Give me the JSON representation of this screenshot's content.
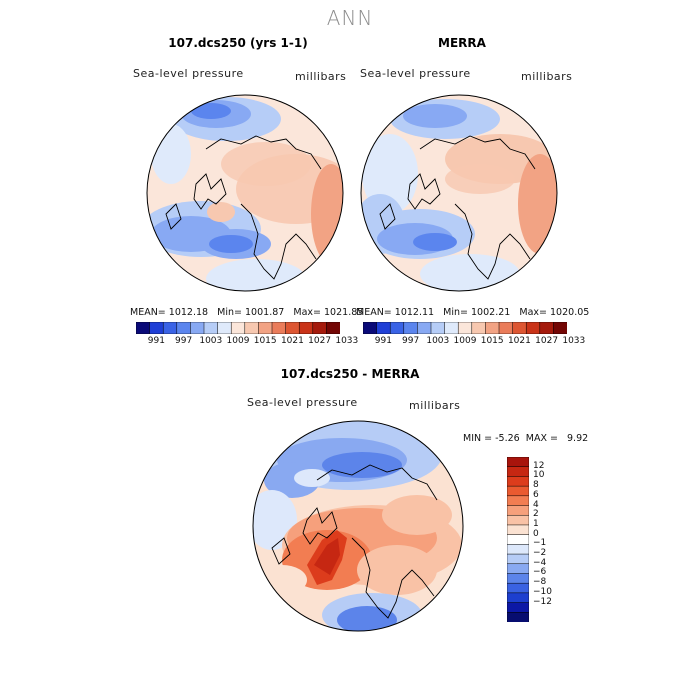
{
  "figure": {
    "title": "ANN"
  },
  "panels": [
    {
      "id": "model",
      "title": "107.dcs250 (yrs 1-1)",
      "left_label": "Sea-level pressure",
      "right_label": "millibars",
      "stats": {
        "mean_label": "MEAN=",
        "mean": "1012.18",
        "min_label": "Min=",
        "min": "1001.87",
        "max_label": "Max=",
        "max": "1021.85"
      }
    },
    {
      "id": "obs",
      "title": "MERRA",
      "left_label": "Sea-level pressure",
      "right_label": "millibars",
      "stats": {
        "mean_label": "MEAN=",
        "mean": "1012.11",
        "min_label": "Min=",
        "min": "1002.21",
        "max_label": "Max=",
        "max": "1020.05"
      }
    },
    {
      "id": "diff",
      "title": "107.dcs250 - MERRA",
      "left_label": "Sea-level pressure",
      "right_label": "millibars",
      "stats_line": {
        "min_label": "MIN =",
        "min": "-5.26",
        "max_label": "MAX =",
        "max": "9.92"
      }
    }
  ],
  "chart_data": [
    {
      "type": "heatmap",
      "projection": "polar stereographic (north polar)",
      "title": "107.dcs250 (yrs 1-1)",
      "variable": "Sea-level pressure",
      "units": "millibars",
      "stats": {
        "mean": 1012.18,
        "min": 1001.87,
        "max": 1021.85
      },
      "colorbar": {
        "orientation": "horizontal",
        "tick_labels": [
          "991",
          "997",
          "1003",
          "1009",
          "1015",
          "1021",
          "1027",
          "1033"
        ],
        "colors": [
          "#0a0a78",
          "#1f3fd6",
          "#3a63e6",
          "#5b85ee",
          "#88a9f3",
          "#b6cdf7",
          "#dfeafb",
          "#fbe6da",
          "#f7c8b0",
          "#f2a384",
          "#ea7c5a",
          "#dd5632",
          "#c93318",
          "#a51a0c",
          "#730604"
        ]
      }
    },
    {
      "type": "heatmap",
      "projection": "polar stereographic (north polar)",
      "title": "MERRA",
      "variable": "Sea-level pressure",
      "units": "millibars",
      "stats": {
        "mean": 1012.11,
        "min": 1002.21,
        "max": 1020.05
      },
      "colorbar": {
        "orientation": "horizontal",
        "tick_labels": [
          "991",
          "997",
          "1003",
          "1009",
          "1015",
          "1021",
          "1027",
          "1033"
        ],
        "colors": [
          "#0a0a78",
          "#1f3fd6",
          "#3a63e6",
          "#5b85ee",
          "#88a9f3",
          "#b6cdf7",
          "#dfeafb",
          "#fbe6da",
          "#f7c8b0",
          "#f2a384",
          "#ea7c5a",
          "#dd5632",
          "#c93318",
          "#a51a0c",
          "#730604"
        ]
      }
    },
    {
      "type": "heatmap",
      "projection": "polar stereographic (north polar)",
      "title": "107.dcs250 - MERRA",
      "variable": "Sea-level pressure",
      "units": "millibars",
      "stats": {
        "min": -5.26,
        "max": 9.92
      },
      "colorbar": {
        "orientation": "vertical",
        "tick_labels": [
          "12",
          "10",
          "8",
          "6",
          "4",
          "2",
          "1",
          "0",
          "-1",
          "-2",
          "-4",
          "-6",
          "-8",
          "-10",
          "-12"
        ],
        "colors": [
          "#a8140c",
          "#c62712",
          "#dc3c1c",
          "#ea5a30",
          "#f27d52",
          "#f6a07c",
          "#f9c2a6",
          "#fbe2d2",
          "#ffffff",
          "#dde8fb",
          "#b6ccf6",
          "#89a9f1",
          "#5c84ea",
          "#3a62e2",
          "#1d3fcf",
          "#0c18a6",
          "#070d70"
        ]
      }
    }
  ]
}
